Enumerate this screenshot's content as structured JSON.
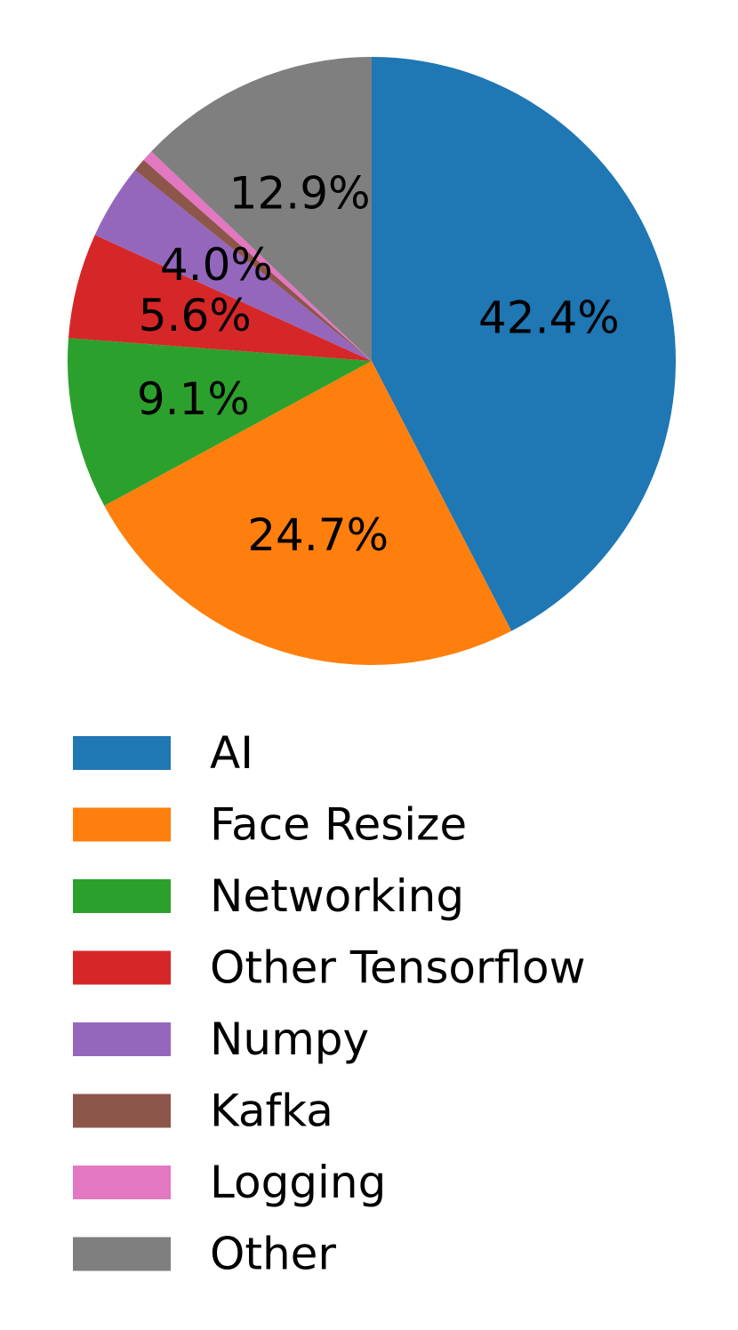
{
  "chart_data": {
    "type": "pie",
    "start_angle_deg": 90,
    "direction": "clockwise",
    "slices": [
      {
        "label": "AI",
        "value": 42.4,
        "pct_label": "42.4%",
        "color": "#1f77b4"
      },
      {
        "label": "Face Resize",
        "value": 24.7,
        "pct_label": "24.7%",
        "color": "#ff7f0e"
      },
      {
        "label": "Networking",
        "value": 9.1,
        "pct_label": "9.1%",
        "color": "#2ca02c"
      },
      {
        "label": "Other Tensorflow",
        "value": 5.6,
        "pct_label": "5.6%",
        "color": "#d62728"
      },
      {
        "label": "Numpy",
        "value": 4.0,
        "pct_label": "4.0%",
        "color": "#9467bd"
      },
      {
        "label": "Kafka",
        "value": 0.7,
        "pct_label": "",
        "color": "#8c564b"
      },
      {
        "label": "Logging",
        "value": 0.6,
        "pct_label": "",
        "color": "#e377c2"
      },
      {
        "label": "Other",
        "value": 12.9,
        "pct_label": "12.9%",
        "color": "#7f7f7f"
      }
    ],
    "legend": {
      "placement": "below",
      "entries": [
        "AI",
        "Face Resize",
        "Networking",
        "Other Tensorflow",
        "Numpy",
        "Kafka",
        "Logging",
        "Other"
      ]
    }
  }
}
